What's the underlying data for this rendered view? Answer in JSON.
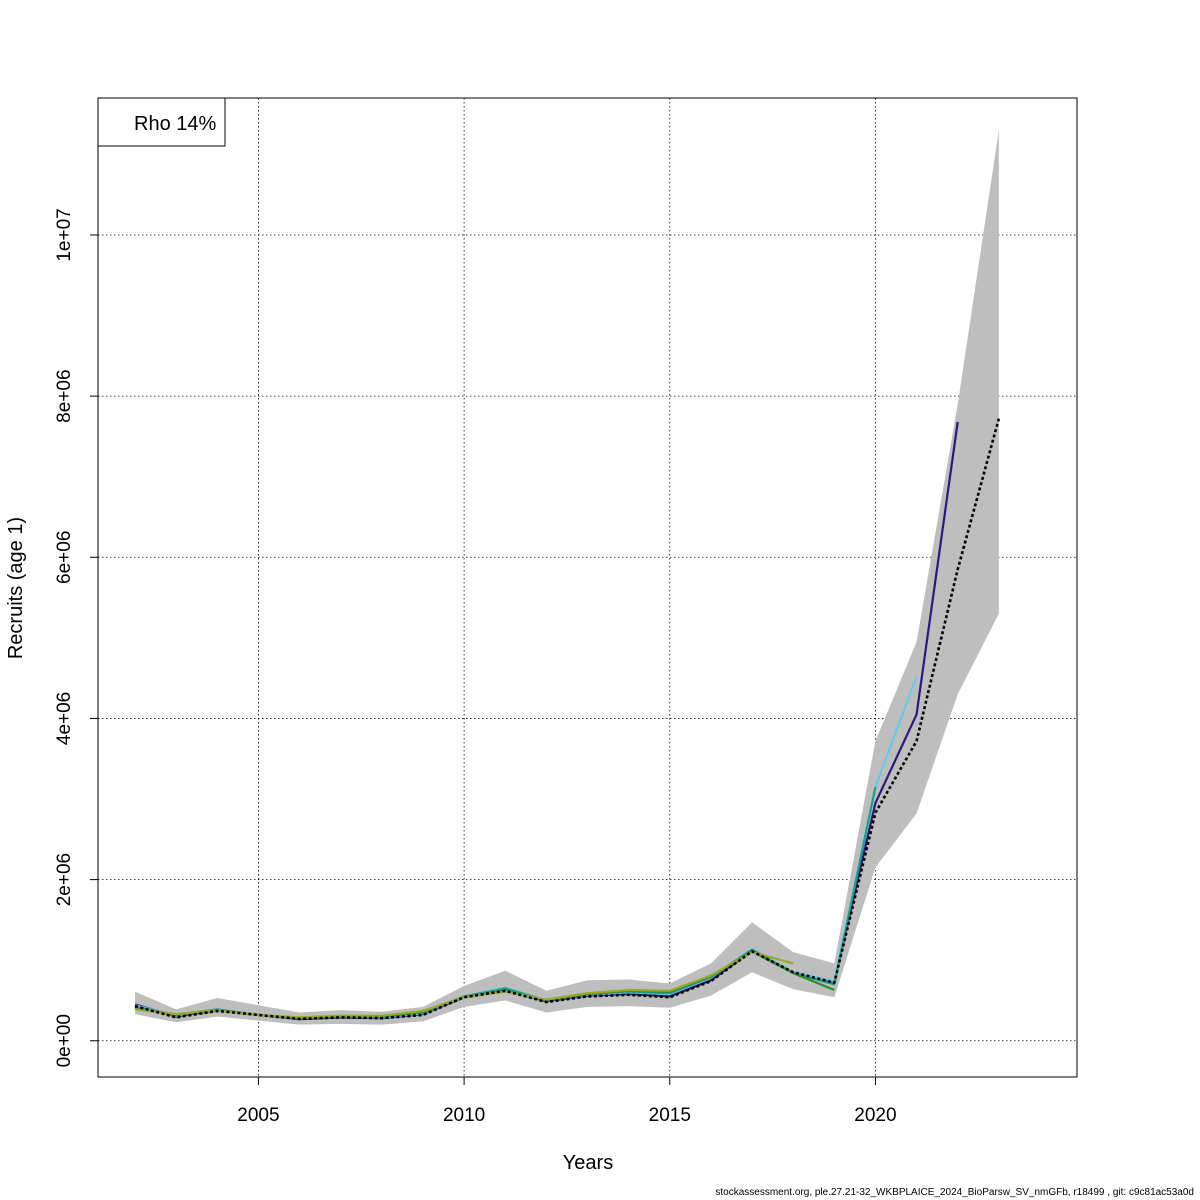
{
  "footer_text": "stockassessment.org, ple.27.21-32_WKBPLAICE_2024_BioParsw_SV_nmGFb, r18499 , git: c9c81ac53a0d",
  "chart_data": {
    "type": "line",
    "xlabel": "Years",
    "ylabel": "Recruits (age 1)",
    "legend_text": "Rho 14%",
    "legend_position": "top-left",
    "grid": true,
    "xlim": [
      2001.1,
      2024.9
    ],
    "ylim": [
      -450000,
      11700000
    ],
    "x_ticks": [
      2005,
      2010,
      2015,
      2020
    ],
    "y_ticks": [
      0,
      2000000,
      4000000,
      6000000,
      8000000,
      10000000
    ],
    "y_tick_labels": [
      "0e+00",
      "2e+06",
      "4e+06",
      "6e+06",
      "8e+06",
      "1e+07"
    ],
    "confidence_band": {
      "color": "#bebebe",
      "x": [
        2002,
        2003,
        2004,
        2005,
        2006,
        2007,
        2008,
        2009,
        2010,
        2011,
        2012,
        2013,
        2014,
        2015,
        2016,
        2017,
        2018,
        2019,
        2020,
        2021,
        2022,
        2023
      ],
      "lower": [
        330000,
        230000,
        300000,
        250000,
        200000,
        210000,
        200000,
        240000,
        420000,
        500000,
        350000,
        420000,
        430000,
        410000,
        560000,
        850000,
        640000,
        540000,
        2150000,
        2820000,
        4300000,
        5300000
      ],
      "upper": [
        610000,
        390000,
        530000,
        440000,
        350000,
        380000,
        360000,
        420000,
        680000,
        870000,
        620000,
        750000,
        760000,
        710000,
        960000,
        1470000,
        1100000,
        960000,
        3720000,
        4950000,
        7900000,
        11300000
      ]
    },
    "series": [
      {
        "color": "#000000",
        "dashed": true,
        "x": [
          2002,
          2003,
          2004,
          2005,
          2006,
          2007,
          2008,
          2009,
          2010,
          2011,
          2012,
          2013,
          2014,
          2015,
          2016,
          2017,
          2018,
          2019,
          2020,
          2021,
          2022,
          2023
        ],
        "values": [
          430000,
          290000,
          370000,
          320000,
          270000,
          290000,
          280000,
          320000,
          540000,
          620000,
          480000,
          550000,
          570000,
          540000,
          740000,
          1110000,
          850000,
          720000,
          2830000,
          3720000,
          5850000,
          7720000
        ]
      },
      {
        "color": "#2b1a7a",
        "x": [
          2002,
          2003,
          2004,
          2005,
          2006,
          2007,
          2008,
          2009,
          2010,
          2011,
          2012,
          2013,
          2014,
          2015,
          2016,
          2017,
          2018,
          2019,
          2020,
          2021,
          2022
        ],
        "values": [
          450000,
          300000,
          380000,
          320000,
          270000,
          290000,
          280000,
          330000,
          540000,
          630000,
          490000,
          560000,
          580000,
          550000,
          750000,
          1120000,
          850000,
          730000,
          2950000,
          4050000,
          7680000
        ]
      },
      {
        "color": "#6ec9e6",
        "x": [
          2002,
          2003,
          2004,
          2005,
          2006,
          2007,
          2008,
          2009,
          2010,
          2011,
          2012,
          2013,
          2014,
          2015,
          2016,
          2017,
          2018,
          2019,
          2020,
          2021
        ],
        "values": [
          440000,
          310000,
          390000,
          320000,
          280000,
          300000,
          290000,
          340000,
          550000,
          660000,
          500000,
          570000,
          600000,
          580000,
          780000,
          1140000,
          850000,
          740000,
          3150000,
          4520000
        ]
      },
      {
        "color": "#1f9e89",
        "x": [
          2002,
          2003,
          2004,
          2005,
          2006,
          2007,
          2008,
          2009,
          2010,
          2011,
          2012,
          2013,
          2014,
          2015,
          2016,
          2017,
          2018,
          2019,
          2020
        ],
        "values": [
          420000,
          320000,
          390000,
          320000,
          280000,
          300000,
          300000,
          350000,
          550000,
          650000,
          500000,
          580000,
          610000,
          590000,
          790000,
          1130000,
          840000,
          700000,
          3150000
        ]
      },
      {
        "color": "#2e8b2e",
        "x": [
          2002,
          2003,
          2004,
          2005,
          2006,
          2007,
          2008,
          2009,
          2010,
          2011,
          2012,
          2013,
          2014,
          2015,
          2016,
          2017,
          2018,
          2019
        ],
        "values": [
          400000,
          320000,
          380000,
          320000,
          280000,
          300000,
          300000,
          360000,
          540000,
          620000,
          500000,
          580000,
          620000,
          610000,
          800000,
          1110000,
          840000,
          630000
        ]
      },
      {
        "color": "#9aa82a",
        "x": [
          2002,
          2003,
          2004,
          2005,
          2006,
          2007,
          2008,
          2009,
          2010,
          2011,
          2012,
          2013,
          2014,
          2015,
          2016,
          2017,
          2018
        ],
        "values": [
          390000,
          330000,
          380000,
          320000,
          290000,
          310000,
          310000,
          370000,
          540000,
          610000,
          510000,
          590000,
          630000,
          620000,
          810000,
          1100000,
          960000
        ]
      }
    ]
  }
}
